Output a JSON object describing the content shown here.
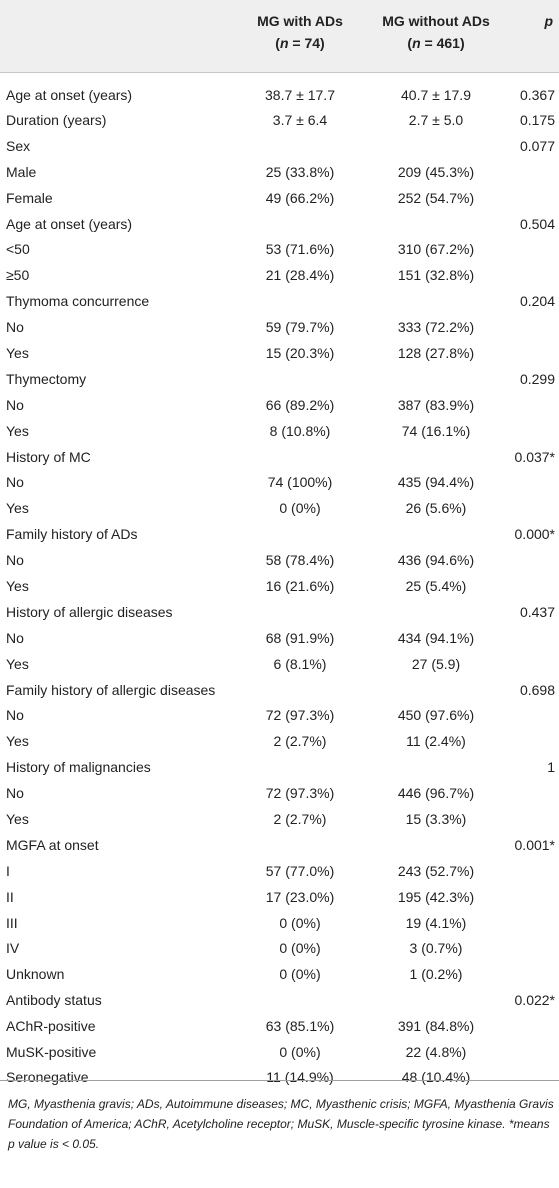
{
  "header": {
    "col1_line1": "MG with ADs",
    "col1_n": "n",
    "col1_rest": " = 74)",
    "col2_line1": "MG without ADs",
    "col2_n": "n",
    "col2_rest": " = 461)",
    "p_label": "p"
  },
  "rows": [
    {
      "label": "Age at onset (years)",
      "mg_with": "38.7 ± 17.7",
      "mg_without": "40.7 ± 17.9",
      "p": "0.367"
    },
    {
      "label": "Duration (years)",
      "mg_with": "3.7 ± 6.4",
      "mg_without": "2.7 ± 5.0",
      "p": "0.175"
    },
    {
      "label": "Sex",
      "mg_with": "",
      "mg_without": "",
      "p": "0.077"
    },
    {
      "label": "Male",
      "mg_with": "25 (33.8%)",
      "mg_without": "209 (45.3%)",
      "p": ""
    },
    {
      "label": "Female",
      "mg_with": "49 (66.2%)",
      "mg_without": "252 (54.7%)",
      "p": ""
    },
    {
      "label": "Age at onset (years)",
      "mg_with": "",
      "mg_without": "",
      "p": "0.504"
    },
    {
      "label": "<50",
      "mg_with": "53 (71.6%)",
      "mg_without": "310 (67.2%)",
      "p": ""
    },
    {
      "label": "≥50",
      "mg_with": "21 (28.4%)",
      "mg_without": "151 (32.8%)",
      "p": ""
    },
    {
      "label": "Thymoma concurrence",
      "mg_with": "",
      "mg_without": "",
      "p": "0.204"
    },
    {
      "label": "No",
      "mg_with": "59 (79.7%)",
      "mg_without": "333 (72.2%)",
      "p": ""
    },
    {
      "label": "Yes",
      "mg_with": "15 (20.3%)",
      "mg_without": "128 (27.8%)",
      "p": ""
    },
    {
      "label": "Thymectomy",
      "mg_with": "",
      "mg_without": "",
      "p": "0.299"
    },
    {
      "label": "No",
      "mg_with": "66 (89.2%)",
      "mg_without": "387 (83.9%)",
      "p": ""
    },
    {
      "label": "Yes",
      "mg_with": "8 (10.8%)",
      "mg_without": "74 (16.1%)",
      "p": ""
    },
    {
      "label": "History of MC",
      "mg_with": "",
      "mg_without": "",
      "p": "0.037*"
    },
    {
      "label": "No",
      "mg_with": "74 (100%)",
      "mg_without": "435 (94.4%)",
      "p": ""
    },
    {
      "label": "Yes",
      "mg_with": "0 (0%)",
      "mg_without": "26 (5.6%)",
      "p": ""
    },
    {
      "label": "Family history of ADs",
      "mg_with": "",
      "mg_without": "",
      "p": "0.000*"
    },
    {
      "label": "No",
      "mg_with": "58 (78.4%)",
      "mg_without": "436 (94.6%)",
      "p": ""
    },
    {
      "label": "Yes",
      "mg_with": "16 (21.6%)",
      "mg_without": "25 (5.4%)",
      "p": ""
    },
    {
      "label": "History of allergic diseases",
      "mg_with": "",
      "mg_without": "",
      "p": "0.437"
    },
    {
      "label": "No",
      "mg_with": "68 (91.9%)",
      "mg_without": "434 (94.1%)",
      "p": ""
    },
    {
      "label": "Yes",
      "mg_with": "6 (8.1%)",
      "mg_without": "27 (5.9)",
      "p": ""
    },
    {
      "label": "Family history of allergic diseases",
      "mg_with": "",
      "mg_without": "",
      "p": "0.698"
    },
    {
      "label": "No",
      "mg_with": "72 (97.3%)",
      "mg_without": "450 (97.6%)",
      "p": ""
    },
    {
      "label": "Yes",
      "mg_with": "2 (2.7%)",
      "mg_without": "11 (2.4%)",
      "p": ""
    },
    {
      "label": "History of malignancies",
      "mg_with": "",
      "mg_without": "",
      "p": "1"
    },
    {
      "label": "No",
      "mg_with": "72 (97.3%)",
      "mg_without": "446 (96.7%)",
      "p": ""
    },
    {
      "label": "Yes",
      "mg_with": "2 (2.7%)",
      "mg_without": "15 (3.3%)",
      "p": ""
    },
    {
      "label": "MGFA at onset",
      "mg_with": "",
      "mg_without": "",
      "p": "0.001*"
    },
    {
      "label": "I",
      "mg_with": "57 (77.0%)",
      "mg_without": "243 (52.7%)",
      "p": ""
    },
    {
      "label": "II",
      "mg_with": "17 (23.0%)",
      "mg_without": "195 (42.3%)",
      "p": ""
    },
    {
      "label": "III",
      "mg_with": "0 (0%)",
      "mg_without": "19 (4.1%)",
      "p": ""
    },
    {
      "label": "IV",
      "mg_with": "0 (0%)",
      "mg_without": "3 (0.7%)",
      "p": ""
    },
    {
      "label": "Unknown",
      "mg_with": "0 (0%)",
      "mg_without": "1 (0.2%)",
      "p": ""
    },
    {
      "label": "Antibody status",
      "mg_with": "",
      "mg_without": "",
      "p": "0.022*"
    },
    {
      "label": "AChR-positive",
      "mg_with": "63 (85.1%)",
      "mg_without": "391 (84.8%)",
      "p": ""
    },
    {
      "label": "MuSK-positive",
      "mg_with": "0 (0%)",
      "mg_without": "22 (4.8%)",
      "p": ""
    },
    {
      "label": "Seronegative",
      "mg_with": "11 (14.9%)",
      "mg_without": "48 (10.4%)",
      "p": ""
    }
  ],
  "footnote": "MG, Myasthenia gravis; ADs, Autoimmune diseases; MC, Myasthenic crisis; MGFA, Myasthenia Gravis Foundation of America; AChR, Acetylcholine receptor; MuSK, Muscle-specific tyrosine kinase. *means p value is < 0.05."
}
